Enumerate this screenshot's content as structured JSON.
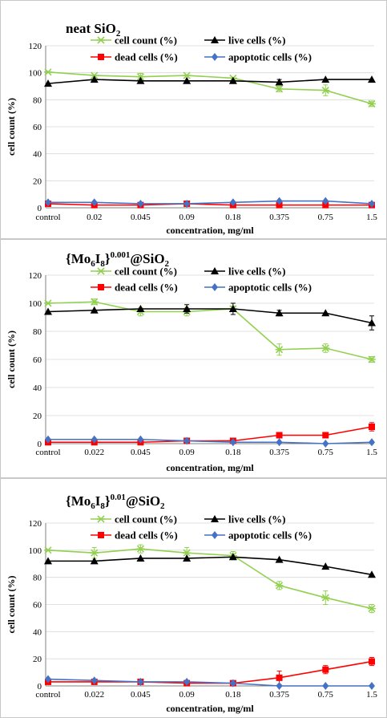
{
  "chart_data": [
    {
      "type": "line",
      "title": {
        "base": "neat SiO",
        "sub": "2",
        "prefix": "",
        "prefix_sub": "",
        "sup": "",
        "suffix": ""
      },
      "xlabel": "concentration, mg/ml",
      "ylabel": "cell count (%)",
      "ylim": [
        0,
        120
      ],
      "yticks": [
        0,
        20,
        40,
        60,
        80,
        100,
        120
      ],
      "categories": [
        "control",
        "0.02",
        "0.045",
        "0.09",
        "0.18",
        "0.375",
        "0.75",
        "1.5"
      ],
      "legend": "top",
      "grid": true,
      "series": [
        {
          "name": "cell count (%)",
          "color": "#92d050",
          "marker": "x",
          "values": [
            100.5,
            98,
            97,
            98,
            96,
            88,
            87,
            77
          ],
          "errors": [
            0,
            0,
            2.5,
            0,
            0,
            2,
            4,
            2
          ]
        },
        {
          "name": "live cells (%)",
          "color": "#000000",
          "marker": "triangle",
          "values": [
            92,
            95,
            94,
            94,
            94,
            93,
            95,
            95
          ],
          "errors": [
            0,
            0,
            0,
            0,
            0,
            2,
            0,
            0
          ]
        },
        {
          "name": "dead cells (%)",
          "color": "#ff0000",
          "marker": "square",
          "values": [
            3,
            2,
            2,
            3,
            2,
            2,
            2,
            2
          ],
          "errors": [
            0,
            0,
            0,
            0,
            0,
            0,
            0,
            0
          ]
        },
        {
          "name": "apoptotic cells (%)",
          "color": "#4472c4",
          "marker": "diamond",
          "values": [
            4,
            4,
            3,
            3,
            4,
            5,
            5,
            3
          ],
          "errors": [
            0,
            0,
            0,
            0,
            0,
            0,
            0,
            0
          ]
        }
      ]
    },
    {
      "type": "line",
      "title": {
        "prefix": "{Mo",
        "prefix_sub": "6",
        "base": "I",
        "sub": "8",
        "sup": "0.001",
        "suffix": "@SiO",
        "suffix_sub": "2"
      },
      "xlabel": "concentration, mg/ml",
      "ylabel": "cell count (%)",
      "ylim": [
        0,
        120
      ],
      "yticks": [
        0,
        20,
        40,
        60,
        80,
        100,
        120
      ],
      "categories": [
        "control",
        "0.022",
        "0.045",
        "0.09",
        "0.18",
        "0.375",
        "0.75",
        "1.5"
      ],
      "legend": "top",
      "grid": true,
      "series": [
        {
          "name": "cell count (%)",
          "color": "#92d050",
          "marker": "x",
          "values": [
            100,
            101,
            94,
            94,
            96,
            67,
            68,
            60
          ],
          "errors": [
            0,
            2,
            3,
            3,
            2,
            4,
            3,
            2
          ]
        },
        {
          "name": "live cells (%)",
          "color": "#000000",
          "marker": "triangle",
          "values": [
            94,
            95,
            96,
            96,
            96,
            93,
            93,
            86
          ],
          "errors": [
            0,
            0,
            0,
            3,
            4,
            2,
            0,
            5
          ]
        },
        {
          "name": "dead cells (%)",
          "color": "#ff0000",
          "marker": "square",
          "values": [
            1,
            1,
            1,
            2,
            2,
            6,
            6,
            12
          ],
          "errors": [
            0,
            0,
            0,
            0,
            0,
            2,
            2,
            3
          ]
        },
        {
          "name": "apoptotic cells (%)",
          "color": "#4472c4",
          "marker": "diamond",
          "values": [
            3,
            3,
            3,
            2,
            1,
            1,
            0,
            1
          ],
          "errors": [
            0,
            0,
            0,
            0,
            0,
            0,
            0,
            0
          ]
        }
      ]
    },
    {
      "type": "line",
      "title": {
        "prefix": "{Mo",
        "prefix_sub": "6",
        "base": "I",
        "sub": "8",
        "sup": "0.01",
        "suffix": "@SiO",
        "suffix_sub": "2"
      },
      "xlabel": "concentration, mg/ml",
      "ylabel": "cell count (%)",
      "ylim": [
        0,
        120
      ],
      "yticks": [
        0,
        20,
        40,
        60,
        80,
        100,
        120
      ],
      "categories": [
        "control",
        "0.022",
        "0.045",
        "0.09",
        "0.18",
        "0.375",
        "0.75",
        "1.5"
      ],
      "legend": "top",
      "grid": true,
      "series": [
        {
          "name": "cell count (%)",
          "color": "#92d050",
          "marker": "x",
          "values": [
            100,
            98,
            101,
            98,
            96,
            74,
            65,
            57
          ],
          "errors": [
            0,
            4,
            3,
            4,
            3,
            3,
            5,
            3
          ]
        },
        {
          "name": "live cells (%)",
          "color": "#000000",
          "marker": "triangle",
          "values": [
            92,
            92,
            94,
            94,
            95,
            93,
            88,
            82
          ],
          "errors": [
            0,
            0,
            0,
            0,
            0,
            0,
            0,
            0
          ]
        },
        {
          "name": "dead cells (%)",
          "color": "#ff0000",
          "marker": "square",
          "values": [
            3,
            3,
            3,
            2,
            2,
            6,
            12,
            18
          ],
          "errors": [
            0,
            0,
            0,
            0,
            0,
            5,
            3,
            3
          ]
        },
        {
          "name": "apoptotic cells (%)",
          "color": "#4472c4",
          "marker": "diamond",
          "values": [
            5,
            4,
            3,
            3,
            2,
            0,
            0,
            0
          ],
          "errors": [
            0,
            0,
            0,
            0,
            0,
            0,
            0,
            0
          ]
        }
      ]
    }
  ]
}
